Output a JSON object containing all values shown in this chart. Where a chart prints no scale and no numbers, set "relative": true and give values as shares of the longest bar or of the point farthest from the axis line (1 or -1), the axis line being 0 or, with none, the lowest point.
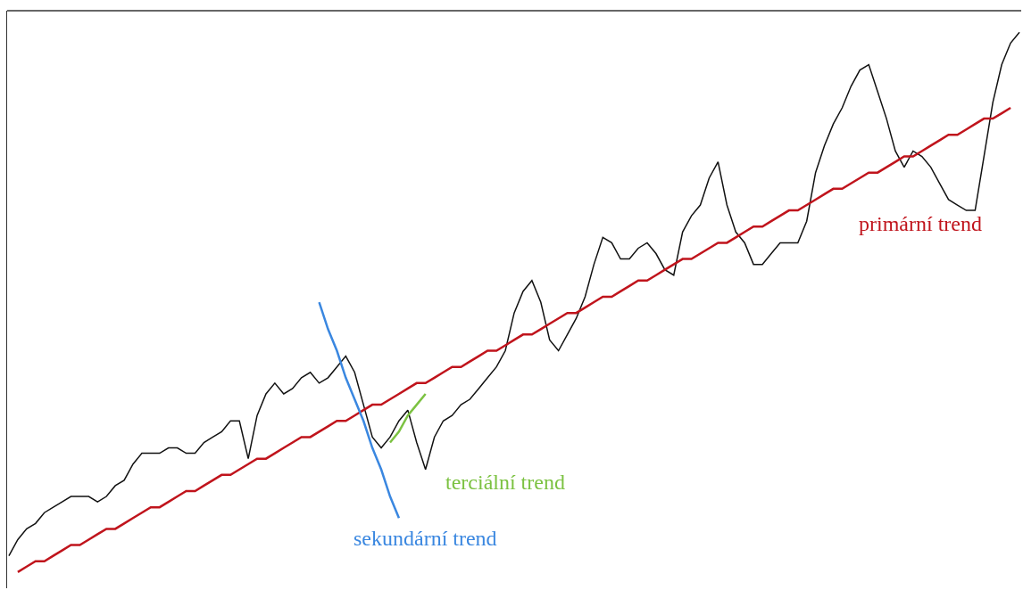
{
  "chart_data": {
    "type": "line",
    "relative": true,
    "legend": false,
    "marker": "none",
    "line_style": "solid",
    "categories": [
      null,
      null,
      null,
      null,
      null,
      null,
      null,
      null,
      null,
      null,
      null,
      null,
      null,
      null,
      null,
      null,
      null,
      null,
      null,
      null,
      null,
      null,
      null,
      null,
      null,
      null,
      null,
      null,
      null,
      null,
      null,
      null,
      null,
      null,
      null,
      null,
      null,
      null,
      null,
      null,
      null,
      null,
      null,
      null,
      null,
      null,
      null,
      null,
      null,
      null,
      null,
      null,
      null,
      null,
      null,
      null,
      null,
      null,
      null,
      null,
      null,
      null,
      null,
      null,
      null,
      null,
      null,
      null,
      null,
      null,
      null,
      null,
      null,
      null,
      null,
      null,
      null,
      null,
      null,
      null,
      null,
      null,
      null,
      null,
      null,
      null,
      null,
      null,
      null,
      null,
      null,
      null,
      null,
      null,
      null,
      null,
      null,
      null,
      null,
      null,
      null,
      null,
      null,
      null,
      null,
      null,
      null,
      null,
      null,
      null,
      null,
      null,
      null,
      null,
      null
    ],
    "series": [
      {
        "color": "#111111",
        "values": [
          0.03,
          0.06,
          0.08,
          0.09,
          0.11,
          0.12,
          0.13,
          0.14,
          0.14,
          0.14,
          0.13,
          0.14,
          0.16,
          0.17,
          0.2,
          0.22,
          0.22,
          0.22,
          0.23,
          0.23,
          0.22,
          0.22,
          0.24,
          0.25,
          0.26,
          0.28,
          0.28,
          0.21,
          0.29,
          0.33,
          0.35,
          0.33,
          0.34,
          0.36,
          0.37,
          0.35,
          0.36,
          0.38,
          0.4,
          0.37,
          0.31,
          0.25,
          0.23,
          0.25,
          0.28,
          0.3,
          0.24,
          0.19,
          0.25,
          0.28,
          0.29,
          0.31,
          0.32,
          0.34,
          0.36,
          0.38,
          0.41,
          0.48,
          0.52,
          0.54,
          0.5,
          0.43,
          0.41,
          0.44,
          0.47,
          0.51,
          0.57,
          0.62,
          0.61,
          0.58,
          0.58,
          0.6,
          0.61,
          0.59,
          0.56,
          0.55,
          0.63,
          0.66,
          0.68,
          0.73,
          0.76,
          0.68,
          0.63,
          0.61,
          0.57,
          0.57,
          0.59,
          0.61,
          0.61,
          0.61,
          0.65,
          0.74,
          0.79,
          0.83,
          0.86,
          0.9,
          0.93,
          0.94,
          0.89,
          0.84,
          0.78,
          0.75,
          0.78,
          0.77,
          0.75,
          0.72,
          0.69,
          0.68,
          0.67,
          0.67,
          0.77,
          0.87,
          0.94,
          0.98,
          1.0
        ]
      },
      {
        "name": "primární trend",
        "type": "line",
        "color": "#c0141c",
        "values": [
          null,
          0.0,
          0.01,
          0.02,
          0.02,
          0.03,
          0.04,
          0.05,
          0.05,
          0.06,
          0.07,
          0.08,
          0.08,
          0.09,
          0.1,
          0.11,
          0.12,
          0.12,
          0.13,
          0.14,
          0.15,
          0.15,
          0.16,
          0.17,
          0.18,
          0.18,
          0.19,
          0.2,
          0.21,
          0.21,
          0.22,
          0.23,
          0.24,
          0.25,
          0.25,
          0.26,
          0.27,
          0.28,
          0.28,
          0.29,
          0.3,
          0.31,
          0.31,
          0.32,
          0.33,
          0.34,
          0.35,
          0.35,
          0.36,
          0.37,
          0.38,
          0.38,
          0.39,
          0.4,
          0.41,
          0.41,
          0.42,
          0.43,
          0.44,
          0.44,
          0.45,
          0.46,
          0.47,
          0.48,
          0.48,
          0.49,
          0.5,
          0.51,
          0.51,
          0.52,
          0.53,
          0.54,
          0.54,
          0.55,
          0.56,
          0.57,
          0.58,
          0.58,
          0.59,
          0.6,
          0.61,
          0.61,
          0.62,
          0.63,
          0.64,
          0.64,
          0.65,
          0.66,
          0.67,
          0.67,
          0.68,
          0.69,
          0.7,
          0.71,
          0.71,
          0.72,
          0.73,
          0.74,
          0.74,
          0.75,
          0.76,
          0.77,
          0.77,
          0.78,
          0.79,
          0.8,
          0.81,
          0.81,
          0.82,
          0.83,
          0.84,
          0.84,
          0.85,
          0.86,
          null
        ]
      },
      {
        "name": "sekundární trend",
        "type": "line",
        "color": "#3a87e0",
        "values": [
          null,
          null,
          null,
          null,
          null,
          null,
          null,
          null,
          null,
          null,
          null,
          null,
          null,
          null,
          null,
          null,
          null,
          null,
          null,
          null,
          null,
          null,
          null,
          null,
          null,
          null,
          null,
          null,
          null,
          null,
          null,
          null,
          null,
          null,
          null,
          0.5,
          0.45,
          0.41,
          0.36,
          0.32,
          0.28,
          0.23,
          0.19,
          0.14,
          0.1,
          null,
          null,
          null,
          null,
          null,
          null,
          null,
          null,
          null,
          null,
          null,
          null,
          null,
          null,
          null,
          null,
          null,
          null,
          null,
          null,
          null,
          null,
          null,
          null,
          null,
          null,
          null,
          null,
          null,
          null,
          null,
          null,
          null,
          null,
          null,
          null,
          null,
          null,
          null,
          null,
          null,
          null,
          null,
          null,
          null,
          null,
          null,
          null,
          null,
          null,
          null,
          null,
          null,
          null,
          null,
          null,
          null,
          null,
          null,
          null,
          null,
          null,
          null,
          null,
          null,
          null,
          null,
          null,
          null,
          null
        ]
      },
      {
        "name": "terciální trend",
        "type": "line",
        "color": "#7cc242",
        "values": [
          null,
          null,
          null,
          null,
          null,
          null,
          null,
          null,
          null,
          null,
          null,
          null,
          null,
          null,
          null,
          null,
          null,
          null,
          null,
          null,
          null,
          null,
          null,
          null,
          null,
          null,
          null,
          null,
          null,
          null,
          null,
          null,
          null,
          null,
          null,
          null,
          null,
          null,
          null,
          null,
          null,
          null,
          null,
          0.24,
          0.26,
          0.29,
          0.31,
          0.33,
          null,
          null,
          null,
          null,
          null,
          null,
          null,
          null,
          null,
          null,
          null,
          null,
          null,
          null,
          null,
          null,
          null,
          null,
          null,
          null,
          null,
          null,
          null,
          null,
          null,
          null,
          null,
          null,
          null,
          null,
          null,
          null,
          null,
          null,
          null,
          null,
          null,
          null,
          null,
          null,
          null,
          null,
          null,
          null,
          null,
          null,
          null,
          null,
          null,
          null,
          null,
          null,
          null,
          null,
          null,
          null,
          null,
          null,
          null,
          null,
          null,
          null,
          null,
          null,
          null,
          null,
          null
        ]
      }
    ]
  }
}
